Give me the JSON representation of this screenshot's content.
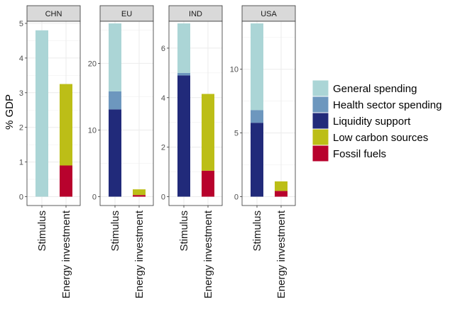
{
  "chart_data": {
    "type": "bar",
    "stacked": true,
    "ylabel": "% GDP",
    "categories": [
      "Stimulus",
      "Energy investment"
    ],
    "grid": true,
    "legend_position": "right",
    "series_names": [
      "General spending",
      "Health sector spending",
      "Liquidity support",
      "Low carbon sources",
      "Fossil fuels"
    ],
    "colors": {
      "General spending": "#abd5d6",
      "Health sector spending": "#6d97be",
      "Liquidity support": "#212a7a",
      "Low carbon sources": "#bcbe17",
      "Fossil fuels": "#b8022d"
    },
    "panels": [
      {
        "label": "CHN",
        "ylim": [
          0,
          5
        ],
        "ticks": [
          0,
          1,
          2,
          3,
          4,
          5
        ],
        "bars": [
          {
            "category": "Stimulus",
            "segments": [
              {
                "series": "Liquidity support",
                "value": 0
              },
              {
                "series": "Health sector spending",
                "value": 0
              },
              {
                "series": "General spending",
                "value": 4.8
              }
            ]
          },
          {
            "category": "Energy investment",
            "segments": [
              {
                "series": "Fossil fuels",
                "value": 0.9
              },
              {
                "series": "Low carbon sources",
                "value": 2.35
              }
            ]
          }
        ]
      },
      {
        "label": "EU",
        "ylim": [
          0,
          26
        ],
        "ticks": [
          0,
          10,
          20
        ],
        "bars": [
          {
            "category": "Stimulus",
            "segments": [
              {
                "series": "Liquidity support",
                "value": 13.1
              },
              {
                "series": "Health sector spending",
                "value": 2.7
              },
              {
                "series": "General spending",
                "value": 10.2
              }
            ]
          },
          {
            "category": "Energy investment",
            "segments": [
              {
                "series": "Fossil fuels",
                "value": 0.25
              },
              {
                "series": "Low carbon sources",
                "value": 0.85
              }
            ]
          }
        ]
      },
      {
        "label": "IND",
        "ylim": [
          0,
          7
        ],
        "ticks": [
          0,
          2,
          4,
          6
        ],
        "bars": [
          {
            "category": "Stimulus",
            "segments": [
              {
                "series": "Liquidity support",
                "value": 4.9
              },
              {
                "series": "Health sector spending",
                "value": 0.1
              },
              {
                "series": "General spending",
                "value": 2.0
              }
            ]
          },
          {
            "category": "Energy investment",
            "segments": [
              {
                "series": "Fossil fuels",
                "value": 1.05
              },
              {
                "series": "Low carbon sources",
                "value": 3.1
              }
            ]
          }
        ]
      },
      {
        "label": "USA",
        "ylim": [
          0,
          13.6
        ],
        "ticks": [
          0,
          5,
          10
        ],
        "bars": [
          {
            "category": "Stimulus",
            "segments": [
              {
                "series": "Liquidity support",
                "value": 5.8
              },
              {
                "series": "Health sector spending",
                "value": 1.0
              },
              {
                "series": "General spending",
                "value": 6.8
              }
            ]
          },
          {
            "category": "Energy investment",
            "segments": [
              {
                "series": "Fossil fuels",
                "value": 0.45
              },
              {
                "series": "Low carbon sources",
                "value": 0.75
              }
            ]
          }
        ]
      }
    ]
  }
}
